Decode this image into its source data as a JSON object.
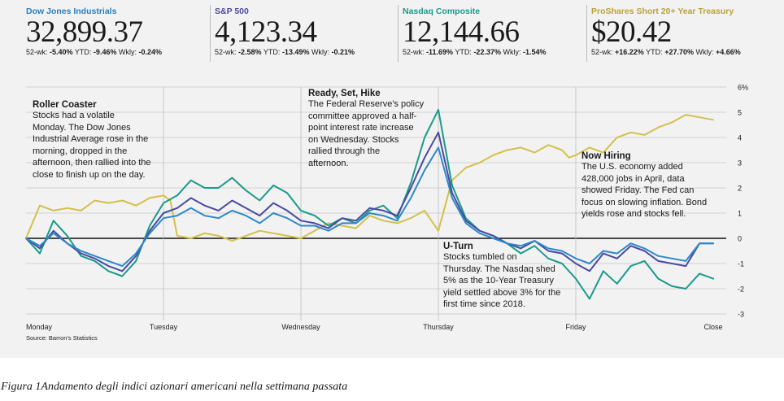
{
  "indices": [
    {
      "name": "Dow Jones Industrials",
      "value": "32,899.37",
      "name_color": "#2a7fb8",
      "stats": [
        {
          "label": "52-wk:",
          "value": "-5.40%"
        },
        {
          "label": "YTD:",
          "value": "-9.46%"
        },
        {
          "label": "Wkly:",
          "value": "-0.24%"
        }
      ]
    },
    {
      "name": "S&P 500",
      "value": "4,123.34",
      "name_color": "#4a4aa0",
      "stats": [
        {
          "label": "52-wk:",
          "value": "-2.58%"
        },
        {
          "label": "YTD:",
          "value": "-13.49%"
        },
        {
          "label": "Wkly:",
          "value": "-0.21%"
        }
      ]
    },
    {
      "name": "Nasdaq Composite",
      "value": "12,144.66",
      "name_color": "#1a9a8a",
      "stats": [
        {
          "label": "52-wk:",
          "value": "-11.69%"
        },
        {
          "label": "YTD:",
          "value": "-22.37%"
        },
        {
          "label": "Wkly:",
          "value": "-1.54%"
        }
      ]
    },
    {
      "name": "ProShares Short 20+ Year Treasury",
      "value": "$20.42",
      "name_color": "#b8a23c",
      "stats": [
        {
          "label": "52-wk:",
          "value": "+16.22%"
        },
        {
          "label": "YTD:",
          "value": "+27.70%"
        },
        {
          "label": "Wkly:",
          "value": "+4.66%"
        }
      ]
    }
  ],
  "annotations": [
    {
      "id": "roller-coaster",
      "title": "Roller Coaster",
      "lines": [
        "Stocks had a volatile",
        "Monday. The Dow Jones",
        "Industrial Average rose in the",
        "morning, dropped in the",
        "afternoon, then rallied into the",
        "close to finish up on the day."
      ]
    },
    {
      "id": "ready-set-hike",
      "title": "Ready, Set, Hike",
      "lines": [
        "The Federal Reserve's policy",
        "committee approved a half-",
        "point interest rate increase",
        "on Wednesday. Stocks",
        "rallied through the",
        "afternoon."
      ]
    },
    {
      "id": "now-hiring",
      "title": "Now Hiring",
      "lines": [
        "The U.S. economy added",
        "428,000 jobs in April, data",
        "showed Friday. The Fed can",
        "focus on slowing inflation. Bond",
        "yields rose and stocks fell."
      ]
    },
    {
      "id": "u-turn",
      "title": "U-Turn",
      "lines": [
        "Stocks tumbled on",
        "Thursday. The Nasdaq shed",
        "5% as the 10-Year Treasury",
        "yield settled above 3% for the",
        "first time since 2018."
      ]
    }
  ],
  "source": "Source: Barron's Statistics",
  "caption": "Figura 1Andamento degli indici azionari americani nella settimana passata",
  "chart_data": {
    "type": "line",
    "title": "",
    "xlabel": "",
    "ylabel": "",
    "x_ticks": [
      "Monday",
      "Tuesday",
      "Wednesday",
      "Thursday",
      "Friday",
      "Close"
    ],
    "y_ticks": [
      "6%",
      "5",
      "4",
      "3",
      "2",
      "1",
      "0",
      "-1",
      "-2",
      "-3"
    ],
    "ylim": [
      -3,
      6
    ],
    "xlim": [
      0,
      5
    ],
    "grid": true,
    "series": [
      {
        "name": "ProShares Short 20+ Year Treasury",
        "color": "#d4c04a",
        "x": [
          0,
          0.1,
          0.2,
          0.3,
          0.4,
          0.5,
          0.6,
          0.7,
          0.8,
          0.9,
          1.0,
          1.05,
          1.1,
          1.2,
          1.3,
          1.4,
          1.5,
          1.6,
          1.7,
          1.8,
          1.9,
          2.0,
          2.1,
          2.2,
          2.3,
          2.4,
          2.5,
          2.6,
          2.7,
          2.8,
          2.9,
          3.0,
          3.1,
          3.2,
          3.3,
          3.4,
          3.5,
          3.6,
          3.7,
          3.8,
          3.9,
          3.95,
          4.0,
          4.1,
          4.2,
          4.3,
          4.4,
          4.5,
          4.6,
          4.7,
          4.8,
          4.9,
          5.0
        ],
        "y": [
          0.0,
          1.3,
          1.1,
          1.2,
          1.1,
          1.5,
          1.4,
          1.5,
          1.3,
          1.6,
          1.7,
          1.5,
          0.1,
          0.0,
          0.2,
          0.1,
          -0.1,
          0.1,
          0.3,
          0.2,
          0.1,
          0.0,
          0.3,
          0.6,
          0.5,
          0.4,
          0.9,
          0.7,
          0.6,
          0.8,
          1.1,
          0.3,
          2.3,
          2.8,
          3.0,
          3.3,
          3.5,
          3.6,
          3.4,
          3.7,
          3.5,
          3.2,
          3.3,
          3.6,
          3.4,
          4.0,
          4.2,
          4.1,
          4.4,
          4.6,
          4.9,
          4.8,
          4.7
        ]
      },
      {
        "name": "Nasdaq Composite",
        "color": "#1a9a8a",
        "x": [
          0,
          0.1,
          0.2,
          0.3,
          0.4,
          0.5,
          0.6,
          0.7,
          0.8,
          0.9,
          1.0,
          1.1,
          1.2,
          1.3,
          1.4,
          1.5,
          1.6,
          1.7,
          1.8,
          1.9,
          2.0,
          2.1,
          2.2,
          2.3,
          2.4,
          2.5,
          2.6,
          2.7,
          2.8,
          2.9,
          3.0,
          3.1,
          3.2,
          3.3,
          3.4,
          3.5,
          3.6,
          3.7,
          3.8,
          3.9,
          4.0,
          4.1,
          4.2,
          4.3,
          4.4,
          4.5,
          4.6,
          4.7,
          4.8,
          4.9,
          5.0
        ],
        "y": [
          0.0,
          -0.6,
          0.7,
          0.1,
          -0.7,
          -0.9,
          -1.3,
          -1.5,
          -0.9,
          0.5,
          1.4,
          1.7,
          2.3,
          2.0,
          2.0,
          2.4,
          1.9,
          1.5,
          2.1,
          1.8,
          1.1,
          0.9,
          0.5,
          0.8,
          0.6,
          1.1,
          1.3,
          0.8,
          2.2,
          4.0,
          5.1,
          2.1,
          0.8,
          0.3,
          0.1,
          -0.2,
          -0.6,
          -0.3,
          -0.8,
          -1.0,
          -1.6,
          -2.4,
          -1.3,
          -1.8,
          -1.1,
          -0.9,
          -1.6,
          -1.9,
          -2.0,
          -1.4,
          -1.6
        ]
      },
      {
        "name": "S&P 500",
        "color": "#4a4aa0",
        "x": [
          0,
          0.1,
          0.2,
          0.3,
          0.4,
          0.5,
          0.6,
          0.7,
          0.8,
          0.9,
          1.0,
          1.1,
          1.2,
          1.3,
          1.4,
          1.5,
          1.6,
          1.7,
          1.8,
          1.9,
          2.0,
          2.1,
          2.2,
          2.3,
          2.4,
          2.5,
          2.6,
          2.7,
          2.8,
          2.9,
          3.0,
          3.1,
          3.2,
          3.3,
          3.4,
          3.5,
          3.6,
          3.7,
          3.8,
          3.9,
          4.0,
          4.1,
          4.2,
          4.3,
          4.4,
          4.5,
          4.6,
          4.7,
          4.8,
          4.9,
          5.0
        ],
        "y": [
          0.0,
          -0.4,
          0.3,
          -0.2,
          -0.6,
          -0.8,
          -1.1,
          -1.3,
          -0.7,
          0.3,
          1.0,
          1.2,
          1.6,
          1.3,
          1.1,
          1.5,
          1.2,
          0.9,
          1.4,
          1.1,
          0.7,
          0.6,
          0.4,
          0.8,
          0.7,
          1.2,
          1.1,
          0.9,
          2.0,
          3.2,
          4.2,
          1.8,
          0.7,
          0.3,
          0.1,
          -0.2,
          -0.4,
          -0.1,
          -0.5,
          -0.6,
          -1.0,
          -1.3,
          -0.6,
          -0.8,
          -0.3,
          -0.5,
          -0.9,
          -1.0,
          -1.1,
          -0.2,
          -0.2
        ]
      },
      {
        "name": "Dow Jones Industrials",
        "color": "#2f88c8",
        "x": [
          0,
          0.1,
          0.2,
          0.3,
          0.4,
          0.5,
          0.6,
          0.7,
          0.8,
          0.9,
          1.0,
          1.1,
          1.2,
          1.3,
          1.4,
          1.5,
          1.6,
          1.7,
          1.8,
          1.9,
          2.0,
          2.1,
          2.2,
          2.3,
          2.4,
          2.5,
          2.6,
          2.7,
          2.8,
          2.9,
          3.0,
          3.1,
          3.2,
          3.3,
          3.4,
          3.5,
          3.6,
          3.7,
          3.8,
          3.9,
          4.0,
          4.1,
          4.2,
          4.3,
          4.4,
          4.5,
          4.6,
          4.7,
          4.8,
          4.9,
          5.0
        ],
        "y": [
          0.0,
          -0.3,
          0.2,
          -0.2,
          -0.5,
          -0.7,
          -0.9,
          -1.1,
          -0.6,
          0.2,
          0.8,
          0.9,
          1.2,
          0.9,
          0.8,
          1.1,
          0.9,
          0.6,
          1.0,
          0.8,
          0.5,
          0.5,
          0.3,
          0.6,
          0.6,
          1.0,
          0.9,
          0.7,
          1.6,
          2.7,
          3.6,
          1.6,
          0.6,
          0.2,
          0.0,
          -0.2,
          -0.3,
          -0.1,
          -0.4,
          -0.5,
          -0.8,
          -1.0,
          -0.5,
          -0.6,
          -0.2,
          -0.4,
          -0.7,
          -0.8,
          -0.9,
          -0.2,
          -0.2
        ]
      }
    ]
  }
}
